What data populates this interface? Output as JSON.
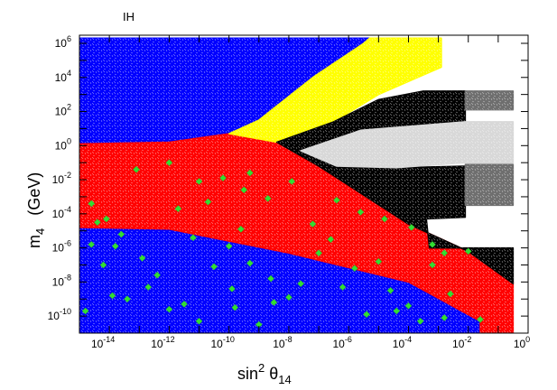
{
  "chart_data": {
    "type": "scatter",
    "title": "IH",
    "xlabel": {
      "base": "sin",
      "sup": "2",
      "theta": " θ",
      "sub": "14"
    },
    "ylabel": {
      "base": "m",
      "sub": "4",
      "unit": "(GeV)"
    },
    "x_scale": "log",
    "y_scale": "log",
    "xlim": [
      1e-15,
      1
    ],
    "ylim": [
      1e-11,
      3000000.0
    ],
    "x_ticks": [
      {
        "base": "10",
        "exp": "-14",
        "value": 1e-14
      },
      {
        "base": "10",
        "exp": "-12",
        "value": 1e-12
      },
      {
        "base": "10",
        "exp": "-10",
        "value": 1e-10
      },
      {
        "base": "10",
        "exp": "-8",
        "value": 1e-08
      },
      {
        "base": "10",
        "exp": "-6",
        "value": 1e-06
      },
      {
        "base": "10",
        "exp": "-4",
        "value": 0.0001
      },
      {
        "base": "10",
        "exp": "-2",
        "value": 0.01
      },
      {
        "base": "10",
        "exp": "0",
        "value": 1
      }
    ],
    "y_ticks": [
      {
        "base": "10",
        "exp": "6",
        "value": 1000000.0
      },
      {
        "base": "10",
        "exp": "4",
        "value": 10000.0
      },
      {
        "base": "10",
        "exp": "2",
        "value": 100.0
      },
      {
        "base": "10",
        "exp": "0",
        "value": 1
      },
      {
        "base": "10",
        "exp": "-2",
        "value": 0.01
      },
      {
        "base": "10",
        "exp": "-4",
        "value": 0.0001
      },
      {
        "base": "10",
        "exp": "-6",
        "value": 1e-06
      },
      {
        "base": "10",
        "exp": "-8",
        "value": 1e-08
      },
      {
        "base": "10",
        "exp": "-10",
        "value": 1e-10
      }
    ],
    "regions": [
      {
        "color": "#0000ff",
        "polygon_log": [
          [
            -15,
            6.3
          ],
          [
            -5.3,
            6.3
          ],
          [
            -5.5,
            6
          ],
          [
            -7.2,
            4
          ],
          [
            -9,
            1.5
          ],
          [
            -10,
            0.7
          ],
          [
            -12,
            0.2
          ],
          [
            -15,
            0.1
          ]
        ]
      },
      {
        "color": "#0000ff",
        "polygon_log": [
          [
            -15,
            -4.8
          ],
          [
            -12,
            -4.9
          ],
          [
            -8,
            -6.3
          ],
          [
            -4,
            -8
          ],
          [
            -1.6,
            -10.3
          ],
          [
            -1.6,
            -11
          ],
          [
            -15,
            -11
          ]
        ]
      },
      {
        "color": "#ff0000",
        "polygon_log": [
          [
            -15,
            0.1
          ],
          [
            -12,
            0.2
          ],
          [
            -10,
            0.7
          ],
          [
            -8.4,
            0.2
          ],
          [
            -7,
            -1.2
          ],
          [
            -4,
            -4.6
          ],
          [
            -2,
            -6.2
          ],
          [
            -0.5,
            -8
          ],
          [
            -0.5,
            -11
          ],
          [
            -1.6,
            -11
          ],
          [
            -1.6,
            -10.3
          ],
          [
            -4,
            -8
          ],
          [
            -8,
            -6.3
          ],
          [
            -12,
            -4.9
          ],
          [
            -15,
            -4.8
          ]
        ]
      },
      {
        "color": "#ffff00",
        "polygon_log": [
          [
            -10,
            0.7
          ],
          [
            -9,
            1.5
          ],
          [
            -7.2,
            4
          ],
          [
            -5.5,
            6
          ],
          [
            -5.3,
            6.3
          ],
          [
            -2.9,
            6.3
          ],
          [
            -2.9,
            4.6
          ],
          [
            -5,
            3
          ],
          [
            -6.5,
            1.4
          ],
          [
            -8.4,
            0.2
          ]
        ]
      },
      {
        "color": "#000000",
        "polygon_log": [
          [
            -8.4,
            0.2
          ],
          [
            -6.5,
            1.4
          ],
          [
            -5,
            2.7
          ],
          [
            -3.5,
            3.2
          ],
          [
            -2.1,
            3.2
          ],
          [
            -2.1,
            1.4
          ],
          [
            -5.6,
            0.9
          ],
          [
            -7.6,
            -0.3
          ],
          [
            -6.4,
            -1.2
          ],
          [
            -4.4,
            -1.3
          ],
          [
            -2.1,
            -1.2
          ],
          [
            -2.1,
            -4.2
          ],
          [
            -3.4,
            -4.3
          ],
          [
            -3.3,
            -6
          ],
          [
            -0.5,
            -6
          ],
          [
            -0.5,
            -8.1
          ],
          [
            -2,
            -6.2
          ],
          [
            -4,
            -4.6
          ],
          [
            -7,
            -1.2
          ]
        ]
      },
      {
        "color": "#d8d8d8",
        "polygon_log": [
          [
            -7.6,
            -0.3
          ],
          [
            -5.6,
            0.9
          ],
          [
            -2.1,
            1.4
          ],
          [
            -0.5,
            1.4
          ],
          [
            -0.5,
            -1
          ],
          [
            -2.1,
            -1
          ],
          [
            -4.4,
            -1.3
          ],
          [
            -6.4,
            -1.2
          ]
        ]
      },
      {
        "color": "#6e6e6e",
        "polygon_log": [
          [
            -2.1,
            3.2
          ],
          [
            -0.5,
            3.2
          ],
          [
            -0.5,
            2.1
          ],
          [
            -2.1,
            2.1
          ]
        ]
      },
      {
        "color": "#6e6e6e",
        "polygon_log": [
          [
            -2.1,
            -1.1
          ],
          [
            -0.5,
            -1.1
          ],
          [
            -0.5,
            -3.5
          ],
          [
            -2.1,
            -3.5
          ]
        ]
      }
    ],
    "markers": {
      "color": "#33dd33",
      "shape": "diamond",
      "points_log": [
        [
          -14.6,
          -3.4
        ],
        [
          -14.1,
          -4.3
        ],
        [
          -13.6,
          -5.2
        ],
        [
          -12.9,
          -6.6
        ],
        [
          -12.4,
          -7.6
        ],
        [
          -11.5,
          -9.3
        ],
        [
          -11.0,
          -10.3
        ],
        [
          -10.5,
          -7.1
        ],
        [
          -9.9,
          -8.4
        ],
        [
          -9.3,
          -6.9
        ],
        [
          -8.6,
          -7.8
        ],
        [
          -8.0,
          -8.9
        ],
        [
          -14.8,
          -9.7
        ],
        [
          -14.2,
          -7.0
        ],
        [
          -13.4,
          -9.0
        ],
        [
          -12.0,
          -9.6
        ],
        [
          -11.2,
          -5.4
        ],
        [
          -10.0,
          -5.9
        ],
        [
          -9.6,
          -4.9
        ],
        [
          -9.0,
          -10.5
        ],
        [
          -8.5,
          -9.2
        ],
        [
          -7.6,
          -8.1
        ],
        [
          -13.1,
          -1.4
        ],
        [
          -12.0,
          -1.0
        ],
        [
          -10.7,
          -3.3
        ],
        [
          -9.5,
          -2.6
        ],
        [
          -8.7,
          -3.1
        ],
        [
          -7.9,
          -2.1
        ],
        [
          -7.2,
          -4.6
        ],
        [
          -6.4,
          -3.2
        ],
        [
          -5.6,
          -3.9
        ],
        [
          -4.8,
          -4.3
        ],
        [
          -3.9,
          -4.8
        ],
        [
          -3.2,
          -5.8
        ],
        [
          -2.8,
          -6.3
        ],
        [
          -2.0,
          -6.2
        ],
        [
          -6.6,
          -5.5
        ],
        [
          -5.8,
          -7.2
        ],
        [
          -5.0,
          -6.8
        ],
        [
          -4.6,
          -8.5
        ],
        [
          -4.0,
          -9.4
        ],
        [
          -3.2,
          -7.0
        ],
        [
          -2.6,
          -8.7
        ],
        [
          -1.6,
          -10.2
        ],
        [
          -14.4,
          -4.5
        ],
        [
          -13.8,
          -5.9
        ],
        [
          -11.7,
          -3.7
        ],
        [
          -11.0,
          -2.1
        ],
        [
          -10.2,
          -1.9
        ],
        [
          -9.3,
          -1.6
        ],
        [
          -9.8,
          -9.5
        ],
        [
          -7.0,
          -6.3
        ],
        [
          -6.2,
          -8.3
        ],
        [
          -5.4,
          -9.9
        ],
        [
          -4.4,
          -9.7
        ],
        [
          -3.6,
          -10.3
        ],
        [
          -2.8,
          -10.1
        ],
        [
          -12.7,
          -8.3
        ],
        [
          -13.9,
          -8.8
        ],
        [
          -14.6,
          -5.8
        ]
      ]
    }
  }
}
